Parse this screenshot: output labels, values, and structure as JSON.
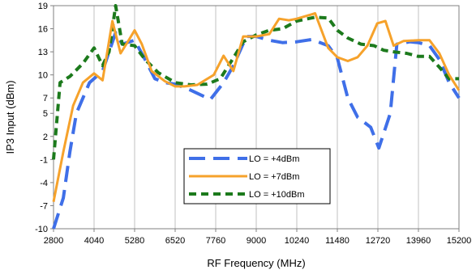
{
  "chart_data": {
    "type": "line",
    "xlabel": "RF Frequency (MHz)",
    "ylabel": "IP3 Input (dBm)",
    "xlim": [
      2800,
      15200
    ],
    "ylim": [
      -10,
      19
    ],
    "x_ticks": [
      2800,
      4040,
      5280,
      6520,
      7760,
      9000,
      10240,
      11480,
      12720,
      13960,
      15200
    ],
    "y_ticks": [
      -10,
      -7,
      -4,
      -1,
      2,
      5,
      7,
      10,
      13,
      16,
      19
    ],
    "grid": "vertical",
    "legend_position": "bottom-center",
    "series": [
      {
        "name": "LO = +4dBm",
        "color": "#3f6fe8",
        "dash": "long-dash",
        "points": [
          [
            2800,
            -10
          ],
          [
            3100,
            -6
          ],
          [
            3300,
            0
          ],
          [
            3500,
            5
          ],
          [
            3900,
            9
          ],
          [
            4300,
            10.5
          ],
          [
            4700,
            15.5
          ],
          [
            4900,
            14
          ],
          [
            5280,
            14.5
          ],
          [
            5600,
            12
          ],
          [
            5900,
            9.5
          ],
          [
            6200,
            9
          ],
          [
            6520,
            8.8
          ],
          [
            7000,
            8
          ],
          [
            7600,
            6.8
          ],
          [
            8000,
            9
          ],
          [
            8300,
            11.2
          ],
          [
            8700,
            15
          ],
          [
            9000,
            15
          ],
          [
            9400,
            14.5
          ],
          [
            9800,
            14.2
          ],
          [
            10240,
            14.3
          ],
          [
            10700,
            14.6
          ],
          [
            11200,
            13.8
          ],
          [
            11480,
            12.2
          ],
          [
            11800,
            7
          ],
          [
            12100,
            4.5
          ],
          [
            12500,
            3.2
          ],
          [
            12750,
            0.5
          ],
          [
            13100,
            5
          ],
          [
            13300,
            14
          ],
          [
            13700,
            14.3
          ],
          [
            13960,
            14.2
          ],
          [
            14300,
            13.8
          ],
          [
            14600,
            12
          ],
          [
            14900,
            9
          ],
          [
            15200,
            7
          ]
        ]
      },
      {
        "name": "LO = +7dBm",
        "color": "#f6a22b",
        "dash": "solid",
        "points": [
          [
            2800,
            -6.5
          ],
          [
            3100,
            0
          ],
          [
            3400,
            6
          ],
          [
            3700,
            9
          ],
          [
            4040,
            10.2
          ],
          [
            4300,
            9.3
          ],
          [
            4600,
            17
          ],
          [
            4850,
            12.8
          ],
          [
            5100,
            14.5
          ],
          [
            5280,
            15.8
          ],
          [
            5500,
            14
          ],
          [
            5800,
            10.5
          ],
          [
            6200,
            9.2
          ],
          [
            6520,
            8.5
          ],
          [
            6800,
            8.5
          ],
          [
            7200,
            8.7
          ],
          [
            7700,
            10
          ],
          [
            8000,
            12.5
          ],
          [
            8300,
            10.5
          ],
          [
            8600,
            15
          ],
          [
            9000,
            15
          ],
          [
            9400,
            15.3
          ],
          [
            9700,
            17.3
          ],
          [
            10000,
            17.1
          ],
          [
            10240,
            17.3
          ],
          [
            10800,
            18
          ],
          [
            11200,
            13.5
          ],
          [
            11480,
            12.3
          ],
          [
            11800,
            11.8
          ],
          [
            12100,
            12.3
          ],
          [
            12400,
            13.8
          ],
          [
            12700,
            16.7
          ],
          [
            12950,
            17
          ],
          [
            13200,
            13.8
          ],
          [
            13500,
            14.4
          ],
          [
            13960,
            14.5
          ],
          [
            14300,
            14.5
          ],
          [
            14600,
            12.8
          ],
          [
            14900,
            10
          ],
          [
            15200,
            8
          ]
        ]
      },
      {
        "name": "LO = +10dBm",
        "color": "#1c7a1c",
        "dash": "short-dash",
        "points": [
          [
            2800,
            -1
          ],
          [
            3000,
            9
          ],
          [
            3300,
            9.8
          ],
          [
            3700,
            11.5
          ],
          [
            4040,
            13.5
          ],
          [
            4300,
            11.2
          ],
          [
            4500,
            13
          ],
          [
            4700,
            19
          ],
          [
            4900,
            14
          ],
          [
            5280,
            13.8
          ],
          [
            5600,
            12
          ],
          [
            6000,
            10.3
          ],
          [
            6520,
            9
          ],
          [
            7000,
            8.7
          ],
          [
            7500,
            8.8
          ],
          [
            7900,
            9.5
          ],
          [
            8300,
            12.2
          ],
          [
            8600,
            14.3
          ],
          [
            9000,
            15.2
          ],
          [
            9400,
            15.8
          ],
          [
            9800,
            16
          ],
          [
            10240,
            17
          ],
          [
            10800,
            17.5
          ],
          [
            11200,
            17.4
          ],
          [
            11480,
            15.8
          ],
          [
            11800,
            14.8
          ],
          [
            12200,
            14
          ],
          [
            12600,
            13.8
          ],
          [
            12900,
            13.2
          ],
          [
            13200,
            13
          ],
          [
            13600,
            12.8
          ],
          [
            13960,
            12.4
          ],
          [
            14300,
            12.4
          ],
          [
            14600,
            11
          ],
          [
            14900,
            9.5
          ],
          [
            15200,
            9.5
          ]
        ]
      }
    ]
  }
}
